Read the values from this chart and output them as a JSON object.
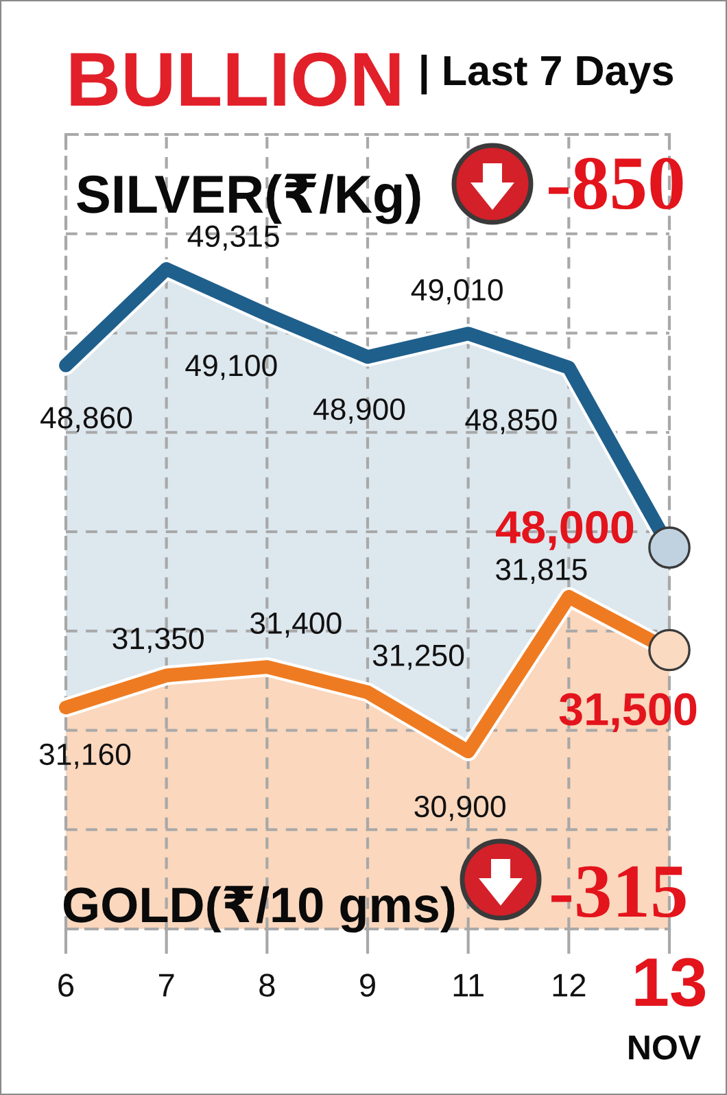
{
  "chart_data": {
    "type": "area",
    "title": "BULLION",
    "subtitle": "| Last 7 Days",
    "categories": [
      "6",
      "7",
      "8",
      "9",
      "11",
      "12",
      "13"
    ],
    "series": [
      {
        "name": "SILVER(₹/Kg)",
        "color": "#1f5f8c",
        "values": [
          48860,
          49315,
          49100,
          48900,
          49010,
          48850,
          48000
        ],
        "value_labels": [
          "48,860",
          "49,315",
          "49,100",
          "48,900",
          "49,010",
          "48,850",
          "48,000"
        ]
      },
      {
        "name": "GOLD(₹/10 gms)",
        "color": "#ee7b22",
        "axis": "y2",
        "values": [
          31160,
          31350,
          31400,
          31250,
          30900,
          31815,
          31500
        ],
        "value_labels": [
          "31,160",
          "31,350",
          "31,400",
          "31,250",
          "30,900",
          "31,815",
          "31,500"
        ]
      }
    ],
    "ylim": [
      46200,
      49950
    ],
    "y2lim": [
      29850,
      34550
    ],
    "annotations": [
      "-850",
      "-315",
      "NOV"
    ],
    "grid": true,
    "tick_labels": "x",
    "legend": "left"
  }
}
